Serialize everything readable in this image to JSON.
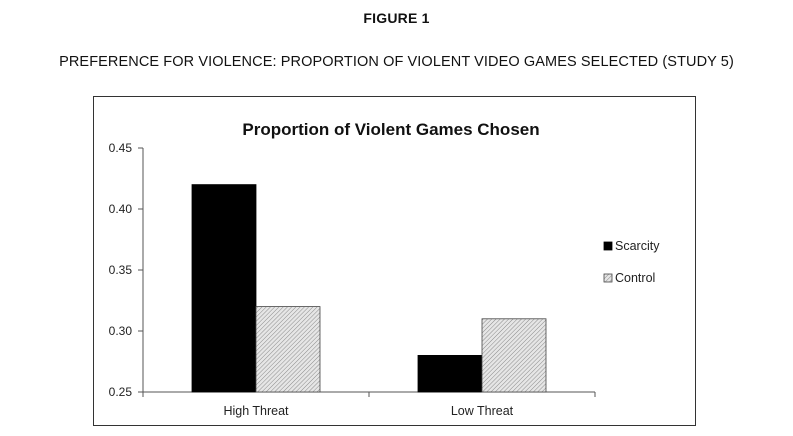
{
  "figure": {
    "label": "FIGURE 1",
    "caption": "PREFERENCE FOR VIOLENCE: PROPORTION OF VIOLENT VIDEO GAMES SELECTED (STUDY 5)"
  },
  "colors": {
    "scarcity": "#000000",
    "control": "#d4d4d4",
    "axis": "#555555"
  },
  "chart_data": {
    "type": "bar",
    "title": "Proportion of Violent Games Chosen",
    "xlabel": "",
    "ylabel": "",
    "categories": [
      "High Threat",
      "Low Threat"
    ],
    "series": [
      {
        "name": "Scarcity",
        "values": [
          0.42,
          0.28
        ]
      },
      {
        "name": "Control",
        "values": [
          0.32,
          0.31
        ]
      }
    ],
    "ylim": [
      0.25,
      0.45
    ],
    "yticks": [
      "0.25",
      "0.30",
      "0.35",
      "0.40",
      "0.45"
    ],
    "grid": false,
    "legend": "right"
  }
}
